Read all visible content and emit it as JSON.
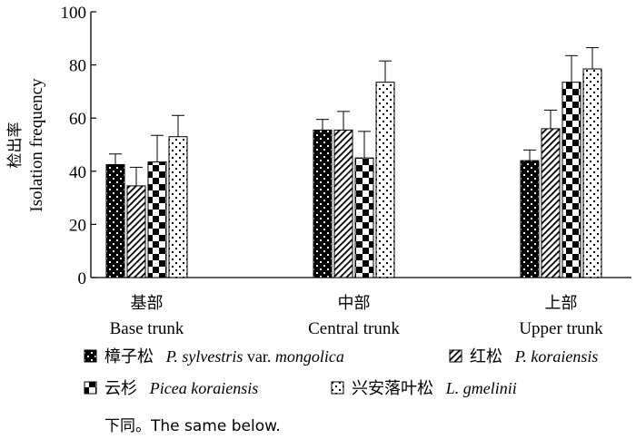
{
  "chart_data": {
    "type": "bar",
    "title": "",
    "ylabel_cn": "检出率",
    "ylabel_en": "Isolation frequency",
    "ylim": [
      0,
      100
    ],
    "yticks": [
      0,
      20,
      40,
      60,
      80,
      100
    ],
    "categories": [
      {
        "cn": "基部",
        "en": "Base trunk"
      },
      {
        "cn": "中部",
        "en": "Central trunk"
      },
      {
        "cn": "上部",
        "en": "Upper trunk"
      }
    ],
    "series": [
      {
        "cn": "樟子松",
        "sci": "P. sylvestris",
        "mid": " var. ",
        "sci2": "mongolica",
        "pattern": "checker-small",
        "values": [
          42.5,
          55.5,
          44.0
        ],
        "errors": [
          4.0,
          4.0,
          4.0
        ]
      },
      {
        "cn": "红松",
        "sci": "P. koraiensis",
        "mid": "",
        "sci2": "",
        "pattern": "diagonal",
        "values": [
          34.5,
          55.5,
          56.0
        ],
        "errors": [
          7.0,
          7.0,
          7.0
        ]
      },
      {
        "cn": "云杉",
        "sci": "Picea koraiensis",
        "mid": "",
        "sci2": "",
        "pattern": "checker-large",
        "values": [
          43.5,
          45.0,
          73.5
        ],
        "errors": [
          10.0,
          10.0,
          10.0
        ]
      },
      {
        "cn": "兴安落叶松",
        "sci": "L. gmelinii",
        "mid": "",
        "sci2": "",
        "pattern": "dots",
        "values": [
          53.0,
          73.5,
          78.5
        ],
        "errors": [
          8.0,
          8.0,
          8.0
        ]
      }
    ],
    "note": "下同。The same below."
  }
}
